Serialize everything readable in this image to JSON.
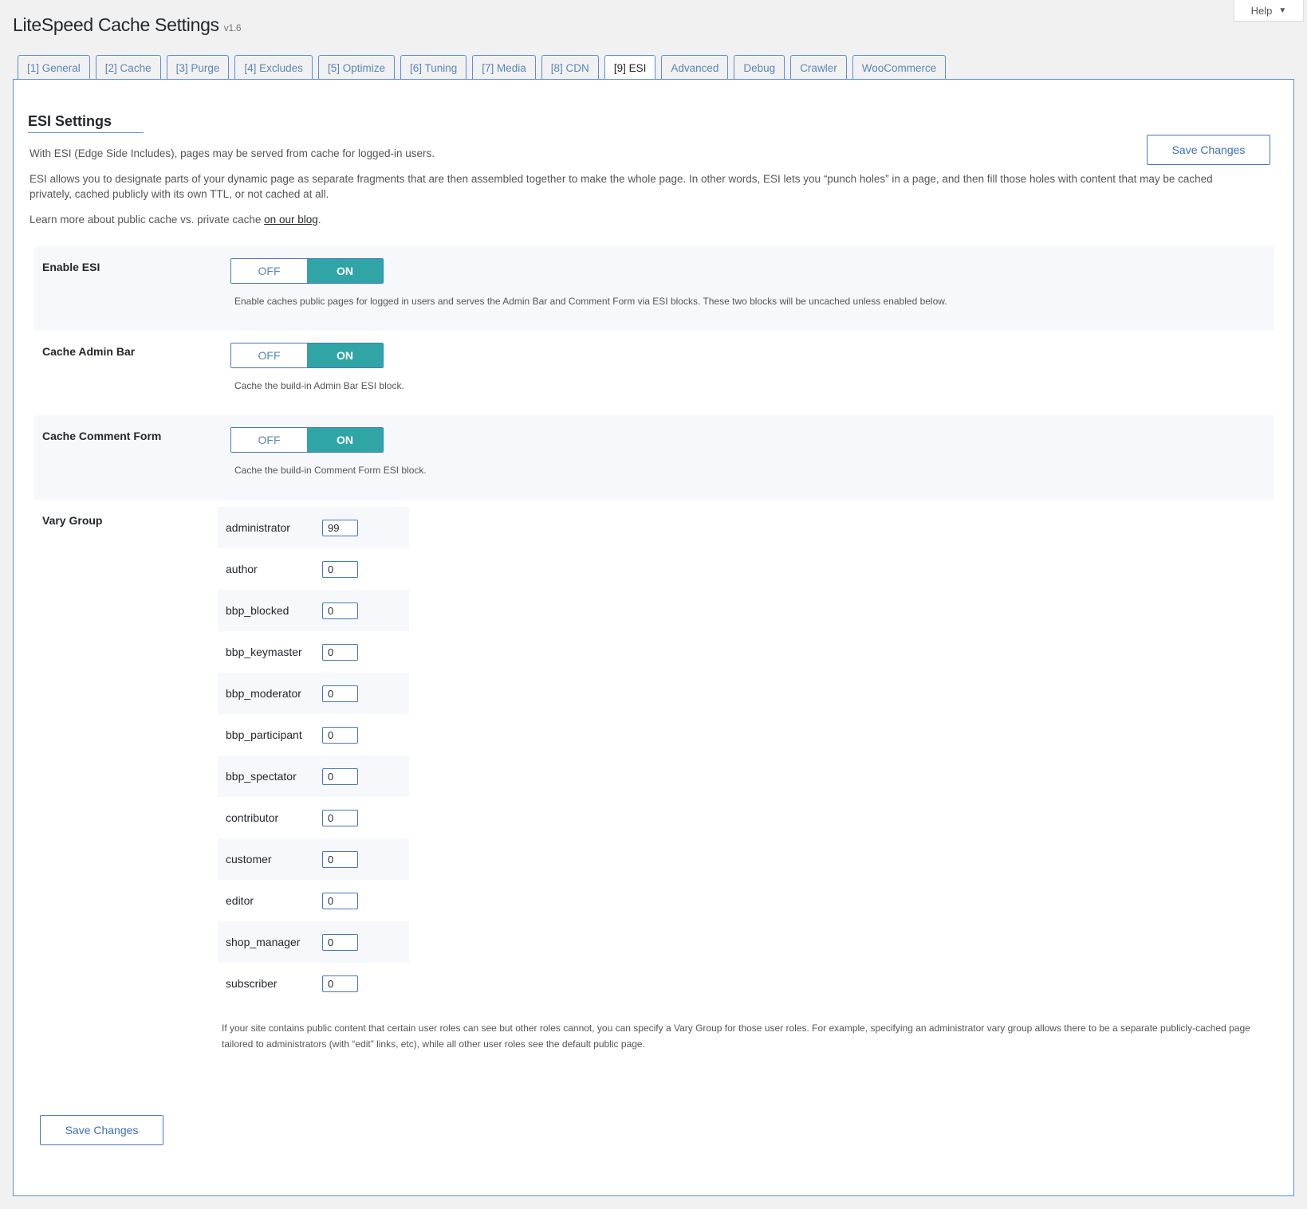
{
  "help": {
    "label": "Help",
    "icon": "triangle-down-icon"
  },
  "header": {
    "title": "LiteSpeed Cache Settings",
    "version": "v1.6"
  },
  "tabs": [
    {
      "label": "[1] General"
    },
    {
      "label": "[2] Cache"
    },
    {
      "label": "[3] Purge"
    },
    {
      "label": "[4] Excludes"
    },
    {
      "label": "[5] Optimize"
    },
    {
      "label": "[6] Tuning"
    },
    {
      "label": "[7] Media"
    },
    {
      "label": "[8] CDN"
    },
    {
      "label": "[9] ESI",
      "active": true
    },
    {
      "label": "Advanced"
    },
    {
      "label": "Debug"
    },
    {
      "label": "Crawler"
    },
    {
      "label": "WooCommerce"
    }
  ],
  "section": {
    "title": "ESI Settings",
    "intro": "With ESI (Edge Side Includes), pages may be served from cache for logged-in users.",
    "description": "ESI allows you to designate parts of your dynamic page as separate fragments that are then assembled together to make the whole page. In other words, ESI lets you “punch holes” in a page, and then fill those holes with content that may be cached privately, cached publicly with its own TTL, or not cached at all.",
    "learn_prefix": "Learn more about public cache vs. private cache ",
    "learn_link": "on our blog",
    "learn_suffix": "."
  },
  "save_label": "Save Changes",
  "settings": [
    {
      "label": "Enable ESI",
      "off": "OFF",
      "on": "ON",
      "value": "ON",
      "desc": "Enable caches public pages for logged in users and serves the Admin Bar and Comment Form via ESI blocks. These two blocks will be uncached unless enabled below."
    },
    {
      "label": "Cache Admin Bar",
      "off": "OFF",
      "on": "ON",
      "value": "ON",
      "desc": "Cache the build-in Admin Bar ESI block."
    },
    {
      "label": "Cache Comment Form",
      "off": "OFF",
      "on": "ON",
      "value": "ON",
      "desc": "Cache the build-in Comment Form ESI block."
    }
  ],
  "vary_group": {
    "label": "Vary Group",
    "roles": [
      {
        "role": "administrator",
        "value": "99"
      },
      {
        "role": "author",
        "value": "0"
      },
      {
        "role": "bbp_blocked",
        "value": "0"
      },
      {
        "role": "bbp_keymaster",
        "value": "0"
      },
      {
        "role": "bbp_moderator",
        "value": "0"
      },
      {
        "role": "bbp_participant",
        "value": "0"
      },
      {
        "role": "bbp_spectator",
        "value": "0"
      },
      {
        "role": "contributor",
        "value": "0"
      },
      {
        "role": "customer",
        "value": "0"
      },
      {
        "role": "editor",
        "value": "0"
      },
      {
        "role": "shop_manager",
        "value": "0"
      },
      {
        "role": "subscriber",
        "value": "0"
      }
    ],
    "desc": "If your site contains public content that certain user roles can see but other roles cannot, you can specify a Vary Group for those user roles. For example, specifying an administrator vary group allows there to be a separate publicly-cached page tailored to administrators (with “edit” links, etc), while all other user roles see the default public page."
  },
  "colors": {
    "accent": "#2fa5a5",
    "link": "#3a6fb5",
    "border": "#5b8fd1"
  }
}
